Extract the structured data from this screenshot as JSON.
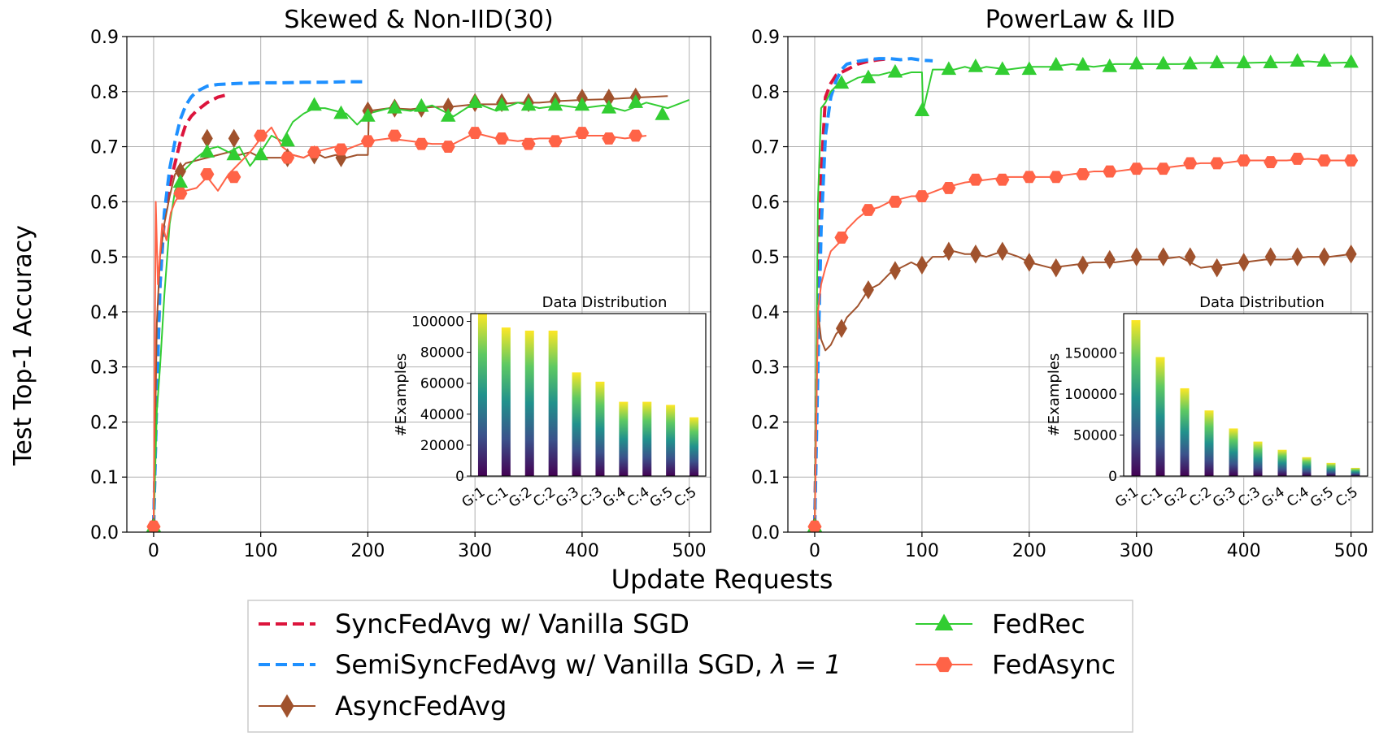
{
  "figure": {
    "shared_ylabel": "Test Top-1 Accuracy",
    "shared_xlabel": "Update Requests"
  },
  "colors": {
    "sync": "#dc143c",
    "semisync": "#1e90ff",
    "async": "#a0522d",
    "fedrec": "#32cd32",
    "fedasync": "#ff6347"
  },
  "legend": {
    "items": [
      {
        "key": "sync",
        "label": "SyncFedAvg w/ Vanilla SGD",
        "style": "dashed",
        "marker": "none"
      },
      {
        "key": "semisync",
        "label": "SemiSyncFedAvg w/ Vanilla SGD, ",
        "math": "λ = 1",
        "style": "dashed",
        "marker": "none"
      },
      {
        "key": "async",
        "label": "AsyncFedAvg",
        "style": "solid",
        "marker": "diamond"
      },
      {
        "key": "fedrec",
        "label": "FedRec",
        "style": "solid",
        "marker": "triangle"
      },
      {
        "key": "fedasync",
        "label": "FedAsync",
        "style": "solid",
        "marker": "hexagon"
      }
    ]
  },
  "chart_data": [
    {
      "type": "line",
      "title": "Skewed & Non-IID(30)",
      "xlabel": "Update Requests",
      "ylabel": "Test Top-1 Accuracy",
      "xlim": [
        -25,
        520
      ],
      "ylim": [
        0.0,
        0.9
      ],
      "xticks": [
        "0",
        "100",
        "200",
        "300",
        "400",
        "500"
      ],
      "yticks": [
        "0.0",
        "0.1",
        "0.2",
        "0.3",
        "0.4",
        "0.5",
        "0.6",
        "0.7",
        "0.8",
        "0.9"
      ],
      "grid": true,
      "series": [
        {
          "key": "sync",
          "name": "SyncFedAvg w/ Vanilla SGD",
          "x": [
            0,
            3,
            6,
            10,
            15,
            20,
            25,
            30,
            35,
            40,
            50,
            60,
            70
          ],
          "y": [
            0.01,
            0.26,
            0.45,
            0.57,
            0.63,
            0.67,
            0.71,
            0.74,
            0.755,
            0.765,
            0.78,
            0.79,
            0.795
          ]
        },
        {
          "key": "semisync",
          "name": "SemiSyncFedAvg w/ Vanilla SGD, λ=1",
          "x": [
            0,
            3,
            6,
            10,
            15,
            20,
            25,
            30,
            35,
            40,
            50,
            60,
            80,
            100,
            120,
            140,
            160,
            180,
            200
          ],
          "y": [
            0.01,
            0.25,
            0.45,
            0.58,
            0.66,
            0.71,
            0.75,
            0.775,
            0.79,
            0.8,
            0.81,
            0.813,
            0.815,
            0.816,
            0.816,
            0.817,
            0.817,
            0.818,
            0.818
          ]
        },
        {
          "key": "async",
          "name": "AsyncFedAvg",
          "x": [
            0,
            3,
            6,
            10,
            15,
            20,
            25,
            30,
            40,
            50,
            60,
            70,
            80,
            90,
            100,
            110,
            120,
            130,
            140,
            150,
            160,
            170,
            180,
            190,
            200,
            201,
            220,
            240,
            260,
            280,
            300,
            320,
            340,
            360,
            380,
            400,
            420,
            440,
            460,
            480
          ],
          "y": [
            0.01,
            0.38,
            0.5,
            0.56,
            0.61,
            0.65,
            0.66,
            0.67,
            0.675,
            0.68,
            0.685,
            0.69,
            0.685,
            0.69,
            0.68,
            0.68,
            0.68,
            0.685,
            0.68,
            0.69,
            0.68,
            0.685,
            0.68,
            0.685,
            0.685,
            0.765,
            0.77,
            0.768,
            0.772,
            0.773,
            0.777,
            0.777,
            0.78,
            0.78,
            0.783,
            0.785,
            0.786,
            0.788,
            0.79,
            0.792
          ],
          "markers_x": [
            0,
            25,
            50,
            75,
            125,
            150,
            175,
            200,
            225,
            250,
            275,
            300,
            325,
            350,
            375,
            400,
            425,
            450
          ],
          "markers_y": [
            0.01,
            0.655,
            0.715,
            0.715,
            0.68,
            0.685,
            0.68,
            0.765,
            0.77,
            0.77,
            0.772,
            0.78,
            0.78,
            0.78,
            0.783,
            0.788,
            0.788,
            0.79
          ]
        },
        {
          "key": "fedrec",
          "name": "FedRec",
          "x": [
            0,
            3,
            6,
            10,
            15,
            20,
            30,
            40,
            50,
            60,
            70,
            80,
            90,
            100,
            110,
            120,
            130,
            140,
            150,
            160,
            170,
            180,
            190,
            200,
            220,
            240,
            260,
            280,
            300,
            320,
            340,
            360,
            380,
            400,
            420,
            440,
            460,
            480,
            500
          ],
          "y": [
            0.01,
            0.22,
            0.3,
            0.43,
            0.56,
            0.62,
            0.66,
            0.68,
            0.695,
            0.7,
            0.69,
            0.7,
            0.665,
            0.69,
            0.72,
            0.71,
            0.745,
            0.76,
            0.77,
            0.77,
            0.765,
            0.76,
            0.74,
            0.76,
            0.77,
            0.765,
            0.775,
            0.755,
            0.78,
            0.765,
            0.78,
            0.77,
            0.775,
            0.77,
            0.775,
            0.765,
            0.78,
            0.77,
            0.785
          ],
          "markers_x": [
            0,
            25,
            50,
            75,
            100,
            125,
            150,
            175,
            200,
            225,
            250,
            275,
            300,
            325,
            350,
            375,
            400,
            425,
            450,
            475
          ],
          "markers_y": [
            0.01,
            0.635,
            0.69,
            0.685,
            0.685,
            0.71,
            0.775,
            0.76,
            0.755,
            0.77,
            0.773,
            0.755,
            0.78,
            0.775,
            0.775,
            0.775,
            0.775,
            0.77,
            0.78,
            0.758
          ]
        },
        {
          "key": "fedasync",
          "name": "FedAsync",
          "x": [
            0,
            2,
            4,
            8,
            12,
            16,
            20,
            25,
            30,
            40,
            50,
            60,
            70,
            80,
            90,
            100,
            110,
            120,
            130,
            140,
            150,
            160,
            170,
            180,
            200,
            220,
            240,
            260,
            280,
            300,
            320,
            340,
            360,
            380,
            400,
            420,
            440,
            460
          ],
          "y": [
            0.01,
            0.6,
            0.45,
            0.56,
            0.53,
            0.58,
            0.6,
            0.615,
            0.62,
            0.625,
            0.645,
            0.62,
            0.65,
            0.67,
            0.69,
            0.715,
            0.735,
            0.7,
            0.685,
            0.68,
            0.69,
            0.695,
            0.7,
            0.695,
            0.71,
            0.715,
            0.71,
            0.705,
            0.705,
            0.725,
            0.715,
            0.71,
            0.715,
            0.715,
            0.72,
            0.72,
            0.715,
            0.72
          ],
          "markers_x": [
            0,
            25,
            50,
            75,
            100,
            125,
            150,
            175,
            200,
            225,
            250,
            275,
            300,
            325,
            350,
            375,
            400,
            425,
            450
          ],
          "markers_y": [
            0.01,
            0.615,
            0.65,
            0.645,
            0.72,
            0.68,
            0.69,
            0.695,
            0.71,
            0.72,
            0.705,
            0.7,
            0.725,
            0.715,
            0.705,
            0.71,
            0.725,
            0.715,
            0.72
          ]
        }
      ],
      "inset": {
        "title": "Data Distribution",
        "ylabel": "#Examples",
        "categories": [
          "G:1",
          "C:1",
          "G:2",
          "C:2",
          "G:3",
          "C:3",
          "G:4",
          "C:4",
          "G:5",
          "C:5"
        ],
        "yticks": [
          "0",
          "20000",
          "40000",
          "60000",
          "80000",
          "100000"
        ],
        "ylim": [
          0,
          105000
        ],
        "values": [
          105000,
          96000,
          94000,
          94000,
          67000,
          61000,
          48000,
          48000,
          46000,
          38000
        ]
      }
    },
    {
      "type": "line",
      "title": "PowerLaw & IID",
      "xlabel": "Update Requests",
      "ylabel": "Test Top-1 Accuracy",
      "xlim": [
        -25,
        520
      ],
      "ylim": [
        0.0,
        0.9
      ],
      "xticks": [
        "0",
        "100",
        "200",
        "300",
        "400",
        "500"
      ],
      "yticks": [
        "0.0",
        "0.1",
        "0.2",
        "0.3",
        "0.4",
        "0.5",
        "0.6",
        "0.7",
        "0.8",
        "0.9"
      ],
      "grid": true,
      "series": [
        {
          "key": "sync",
          "name": "SyncFedAvg w/ Vanilla SGD",
          "x": [
            0,
            3,
            6,
            10,
            15,
            20,
            30,
            40,
            50,
            60,
            70
          ],
          "y": [
            0.01,
            0.4,
            0.65,
            0.79,
            0.815,
            0.83,
            0.84,
            0.85,
            0.855,
            0.858,
            0.86
          ]
        },
        {
          "key": "semisync",
          "name": "SemiSyncFedAvg w/ Vanilla SGD, λ=1",
          "x": [
            0,
            3,
            6,
            10,
            15,
            20,
            25,
            30,
            40,
            50,
            60,
            70,
            80,
            90,
            100,
            110
          ],
          "y": [
            0.01,
            0.3,
            0.55,
            0.72,
            0.79,
            0.82,
            0.84,
            0.85,
            0.855,
            0.858,
            0.86,
            0.86,
            0.858,
            0.86,
            0.857,
            0.856
          ]
        },
        {
          "key": "async",
          "name": "AsyncFedAvg",
          "x": [
            0,
            3,
            6,
            10,
            15,
            20,
            25,
            30,
            40,
            50,
            60,
            70,
            80,
            90,
            100,
            110,
            120,
            130,
            140,
            150,
            160,
            175,
            190,
            200,
            220,
            240,
            260,
            280,
            300,
            320,
            340,
            360,
            380,
            400,
            420,
            440,
            460,
            480,
            500
          ],
          "y": [
            0.01,
            0.4,
            0.35,
            0.33,
            0.34,
            0.36,
            0.37,
            0.39,
            0.41,
            0.44,
            0.45,
            0.47,
            0.48,
            0.49,
            0.48,
            0.5,
            0.5,
            0.51,
            0.505,
            0.505,
            0.5,
            0.51,
            0.5,
            0.49,
            0.48,
            0.485,
            0.49,
            0.49,
            0.495,
            0.495,
            0.5,
            0.48,
            0.485,
            0.49,
            0.495,
            0.495,
            0.5,
            0.5,
            0.505
          ],
          "markers_x": [
            0,
            25,
            50,
            75,
            100,
            125,
            150,
            175,
            200,
            225,
            250,
            275,
            300,
            325,
            350,
            375,
            400,
            425,
            450,
            475,
            500
          ],
          "markers_y": [
            0.01,
            0.37,
            0.44,
            0.475,
            0.485,
            0.51,
            0.505,
            0.51,
            0.49,
            0.48,
            0.485,
            0.495,
            0.5,
            0.5,
            0.5,
            0.48,
            0.49,
            0.5,
            0.5,
            0.5,
            0.505
          ]
        },
        {
          "key": "fedrec",
          "name": "FedRec",
          "x": [
            0,
            3,
            6,
            10,
            15,
            20,
            30,
            40,
            50,
            60,
            70,
            80,
            90,
            100,
            101,
            110,
            120,
            130,
            140,
            150,
            160,
            180,
            200,
            220,
            240,
            260,
            280,
            300,
            320,
            340,
            360,
            380,
            400,
            420,
            440,
            460,
            480,
            500
          ],
          "y": [
            0.01,
            0.6,
            0.77,
            0.78,
            0.8,
            0.81,
            0.815,
            0.825,
            0.83,
            0.83,
            0.835,
            0.83,
            0.835,
            0.835,
            0.765,
            0.84,
            0.84,
            0.84,
            0.845,
            0.84,
            0.845,
            0.84,
            0.845,
            0.845,
            0.85,
            0.845,
            0.85,
            0.85,
            0.85,
            0.85,
            0.852,
            0.852,
            0.852,
            0.853,
            0.853,
            0.855,
            0.852,
            0.853
          ],
          "markers_x": [
            0,
            25,
            50,
            75,
            100,
            125,
            150,
            175,
            200,
            225,
            250,
            275,
            300,
            325,
            350,
            375,
            400,
            425,
            450,
            475,
            500
          ],
          "markers_y": [
            0.01,
            0.815,
            0.825,
            0.835,
            0.765,
            0.84,
            0.845,
            0.84,
            0.84,
            0.848,
            0.848,
            0.845,
            0.85,
            0.85,
            0.85,
            0.852,
            0.852,
            0.852,
            0.855,
            0.855,
            0.853
          ]
        },
        {
          "key": "fedasync",
          "name": "FedAsync",
          "x": [
            0,
            3,
            6,
            10,
            15,
            20,
            25,
            30,
            40,
            50,
            60,
            70,
            80,
            90,
            100,
            120,
            140,
            160,
            180,
            200,
            220,
            240,
            260,
            280,
            300,
            320,
            340,
            360,
            380,
            400,
            420,
            440,
            460,
            480,
            500
          ],
          "y": [
            0.01,
            0.4,
            0.45,
            0.48,
            0.51,
            0.52,
            0.53,
            0.55,
            0.57,
            0.585,
            0.59,
            0.6,
            0.605,
            0.61,
            0.61,
            0.625,
            0.635,
            0.64,
            0.645,
            0.645,
            0.645,
            0.65,
            0.655,
            0.655,
            0.66,
            0.66,
            0.665,
            0.67,
            0.67,
            0.675,
            0.675,
            0.675,
            0.678,
            0.675,
            0.675
          ],
          "markers_x": [
            0,
            25,
            50,
            75,
            100,
            125,
            150,
            175,
            200,
            225,
            250,
            275,
            300,
            325,
            350,
            375,
            400,
            425,
            450,
            475,
            500
          ],
          "markers_y": [
            0.01,
            0.535,
            0.585,
            0.6,
            0.61,
            0.625,
            0.64,
            0.64,
            0.645,
            0.645,
            0.65,
            0.655,
            0.66,
            0.66,
            0.67,
            0.67,
            0.675,
            0.672,
            0.678,
            0.675,
            0.675
          ]
        }
      ],
      "inset": {
        "title": "Data Distribution",
        "ylabel": "#Examples",
        "categories": [
          "G:1",
          "C:1",
          "G:2",
          "C:2",
          "G:3",
          "C:3",
          "G:4",
          "C:4",
          "G:5",
          "C:5"
        ],
        "yticks": [
          "0",
          "50000",
          "100000",
          "150000"
        ],
        "ylim": [
          0,
          198000
        ],
        "values": [
          190000,
          145000,
          107000,
          80000,
          58000,
          42000,
          32000,
          23000,
          16000,
          10000
        ]
      }
    }
  ]
}
